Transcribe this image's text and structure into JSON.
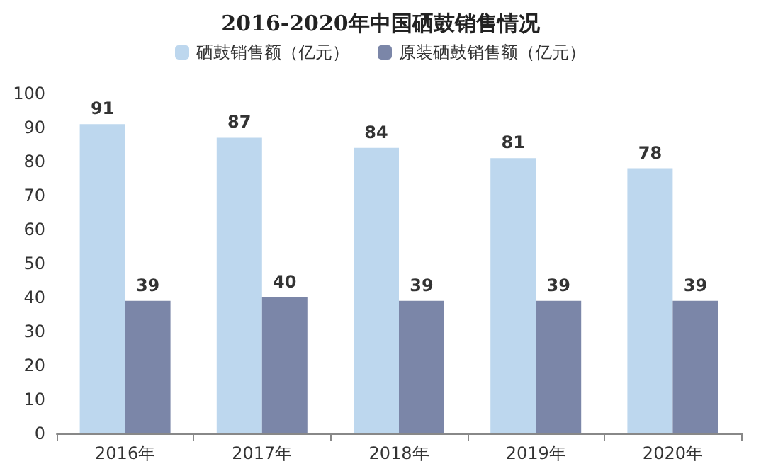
{
  "chart_data": {
    "type": "bar",
    "title": "2016-2020年中国硒鼓销售情况",
    "categories": [
      "2016年",
      "2017年",
      "2018年",
      "2019年",
      "2020年"
    ],
    "series": [
      {
        "name": "硒鼓销售额（亿元）",
        "color": "#bdd7ee",
        "values": [
          91,
          87,
          84,
          81,
          78
        ]
      },
      {
        "name": "原装硒鼓销售额（亿元）",
        "color": "#7b86a8",
        "values": [
          39,
          40,
          39,
          39,
          39
        ]
      }
    ],
    "ylim": [
      0,
      100
    ],
    "yticks": [
      0,
      10,
      20,
      30,
      40,
      50,
      60,
      70,
      80,
      90,
      100
    ],
    "grid": false,
    "legend": "top",
    "data_labels": true
  }
}
